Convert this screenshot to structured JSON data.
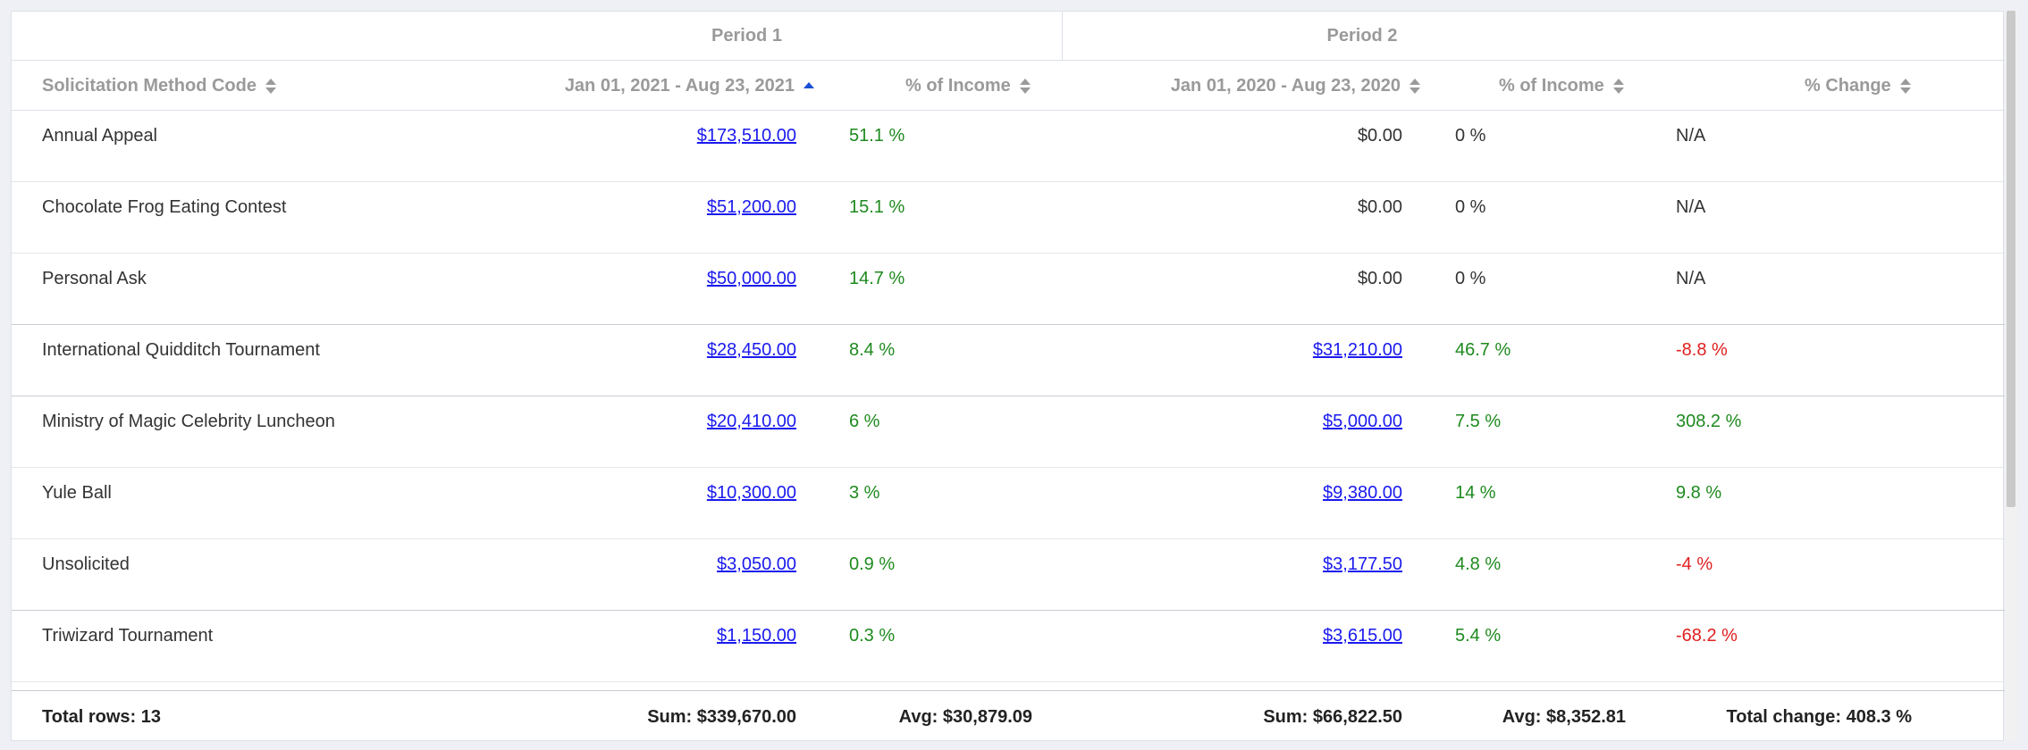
{
  "periods": {
    "p1": "Period 1",
    "p2": "Period 2"
  },
  "columns": {
    "method": "Solicitation Method Code",
    "p1_range": "Jan 01, 2021 - Aug 23, 2021",
    "p1_pct": "% of Income",
    "p2_range": "Jan 01, 2020 - Aug 23, 2020",
    "p2_pct": "% of Income",
    "change": "% Change"
  },
  "rows": [
    {
      "name": "Annual Appeal",
      "p1": "$173,510.00",
      "pct1": "51.1 %",
      "p2": "$0.00",
      "pct2": "0 %",
      "change": "N/A"
    },
    {
      "name": "Chocolate Frog Eating Contest",
      "p1": "$51,200.00",
      "pct1": "15.1 %",
      "p2": "$0.00",
      "pct2": "0 %",
      "change": "N/A"
    },
    {
      "name": "Personal Ask",
      "p1": "$50,000.00",
      "pct1": "14.7 %",
      "p2": "$0.00",
      "pct2": "0 %",
      "change": "N/A"
    },
    {
      "name": "International Quidditch Tournament",
      "p1": "$28,450.00",
      "pct1": "8.4 %",
      "p2": "$31,210.00",
      "pct2": "46.7 %",
      "change": "-8.8 %"
    },
    {
      "name": "Ministry of Magic Celebrity Luncheon",
      "p1": "$20,410.00",
      "pct1": "6 %",
      "p2": "$5,000.00",
      "pct2": "7.5 %",
      "change": "308.2 %"
    },
    {
      "name": "Yule Ball",
      "p1": "$10,300.00",
      "pct1": "3 %",
      "p2": "$9,380.00",
      "pct2": "14 %",
      "change": "9.8 %"
    },
    {
      "name": "Unsolicited",
      "p1": "$3,050.00",
      "pct1": "0.9 %",
      "p2": "$3,177.50",
      "pct2": "4.8 %",
      "change": "-4 %"
    },
    {
      "name": "Triwizard Tournament",
      "p1": "$1,150.00",
      "pct1": "0.3 %",
      "p2": "$3,615.00",
      "pct2": "5.4 %",
      "change": "-68.2 %"
    }
  ],
  "footer": {
    "total_rows": "Total rows: 13",
    "p1_sum": "Sum: $339,670.00",
    "p1_avg": "Avg: $30,879.09",
    "p2_sum": "Sum: $66,822.50",
    "p2_avg": "Avg: $8,352.81",
    "total_change": "Total change: 408.3 %"
  },
  "colors": {
    "link": "#1a1aee",
    "positive": "#1e8a1e",
    "negative": "#e02020",
    "sort_active": "#1a4fd6"
  }
}
